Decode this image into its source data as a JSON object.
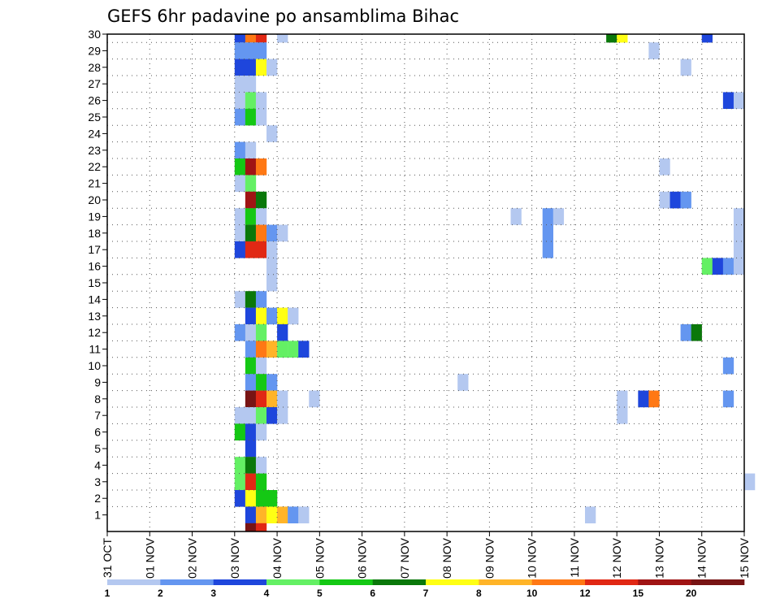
{
  "chart_data": {
    "type": "heatmap",
    "title": "GEFS 6hr padavine po ansamblima Bihac",
    "xlabel": "",
    "ylabel": "",
    "x_tick_labels": [
      "31 OCT",
      "01 NOV",
      "02 NOV",
      "03 NOV",
      "04 NOV",
      "05 NOV",
      "06 NOV",
      "07 NOV",
      "08 NOV",
      "09 NOV",
      "10 NOV",
      "11 NOV",
      "12 NOV",
      "13 NOV",
      "14 NOV",
      "15 NOV"
    ],
    "y_tick_labels": [
      "1",
      "2",
      "3",
      "4",
      "5",
      "6",
      "7",
      "8",
      "9",
      "10",
      "11",
      "12",
      "13",
      "14",
      "15",
      "16",
      "17",
      "18",
      "19",
      "20",
      "21",
      "22",
      "23",
      "24",
      "25",
      "26",
      "27",
      "28",
      "29",
      "30"
    ],
    "xlim_days": [
      0,
      15
    ],
    "ylim_members": [
      0,
      30
    ],
    "grid": true,
    "legend_position": "bottom",
    "levels": [
      1,
      2,
      3,
      4,
      5,
      6,
      7,
      8,
      10,
      12,
      15,
      20
    ],
    "level_labels": [
      "1",
      "2",
      "3",
      "4",
      "5",
      "6",
      "7",
      "8",
      "10",
      "12",
      "15",
      "20"
    ],
    "colors": [
      "#b4c8f0",
      "#6496f0",
      "#1e46dc",
      "#64f064",
      "#14c814",
      "#0a780a",
      "#ffff14",
      "#ffb428",
      "#ff7814",
      "#e12814",
      "#a01414",
      "#781414"
    ],
    "cells_note": "each cell: [member, day_index_6h, color_class]",
    "cells": [
      [
        30,
        12,
        2
      ],
      [
        30,
        13,
        8
      ],
      [
        30,
        14,
        9
      ],
      [
        30,
        16,
        0
      ],
      [
        30,
        47,
        5
      ],
      [
        30,
        48,
        6
      ],
      [
        30,
        56,
        2
      ],
      [
        29,
        12,
        1
      ],
      [
        29,
        13,
        1
      ],
      [
        29,
        14,
        1
      ],
      [
        29,
        51,
        0
      ],
      [
        28,
        12,
        2
      ],
      [
        28,
        13,
        2
      ],
      [
        28,
        14,
        6
      ],
      [
        28,
        15,
        0
      ],
      [
        28,
        54,
        0
      ],
      [
        27,
        12,
        0
      ],
      [
        27,
        13,
        0
      ],
      [
        26,
        12,
        0
      ],
      [
        26,
        13,
        3
      ],
      [
        26,
        14,
        0
      ],
      [
        26,
        58,
        2
      ],
      [
        26,
        59,
        0
      ],
      [
        25,
        12,
        1
      ],
      [
        25,
        13,
        4
      ],
      [
        25,
        14,
        0
      ],
      [
        24,
        15,
        0
      ],
      [
        23,
        12,
        1
      ],
      [
        23,
        13,
        0
      ],
      [
        22,
        12,
        4
      ],
      [
        22,
        13,
        10
      ],
      [
        22,
        14,
        8
      ],
      [
        22,
        52,
        0
      ],
      [
        21,
        12,
        0
      ],
      [
        21,
        13,
        3
      ],
      [
        20,
        13,
        10
      ],
      [
        20,
        14,
        5
      ],
      [
        20,
        52,
        0
      ],
      [
        20,
        53,
        2
      ],
      [
        20,
        54,
        1
      ],
      [
        19,
        12,
        0
      ],
      [
        19,
        13,
        4
      ],
      [
        19,
        14,
        0
      ],
      [
        19,
        38,
        0
      ],
      [
        19,
        41,
        1
      ],
      [
        19,
        42,
        0
      ],
      [
        19,
        59,
        0
      ],
      [
        18,
        12,
        0
      ],
      [
        18,
        13,
        5
      ],
      [
        18,
        14,
        8
      ],
      [
        18,
        15,
        1
      ],
      [
        18,
        16,
        0
      ],
      [
        18,
        41,
        1
      ],
      [
        18,
        59,
        0
      ],
      [
        17,
        12,
        2
      ],
      [
        17,
        13,
        9
      ],
      [
        17,
        14,
        9
      ],
      [
        17,
        15,
        0
      ],
      [
        17,
        41,
        1
      ],
      [
        17,
        59,
        0
      ],
      [
        16,
        15,
        0
      ],
      [
        16,
        56,
        3
      ],
      [
        16,
        57,
        2
      ],
      [
        16,
        58,
        1
      ],
      [
        16,
        59,
        0
      ],
      [
        15,
        15,
        0
      ],
      [
        14,
        12,
        0
      ],
      [
        14,
        13,
        5
      ],
      [
        14,
        14,
        1
      ],
      [
        13,
        13,
        2
      ],
      [
        13,
        14,
        6
      ],
      [
        13,
        15,
        1
      ],
      [
        13,
        16,
        6
      ],
      [
        13,
        17,
        0
      ],
      [
        12,
        12,
        1
      ],
      [
        12,
        13,
        0
      ],
      [
        12,
        14,
        3
      ],
      [
        12,
        16,
        2
      ],
      [
        12,
        54,
        1
      ],
      [
        12,
        55,
        5
      ],
      [
        11,
        13,
        1
      ],
      [
        11,
        14,
        8
      ],
      [
        11,
        15,
        7
      ],
      [
        11,
        16,
        3
      ],
      [
        11,
        17,
        3
      ],
      [
        11,
        18,
        2
      ],
      [
        10,
        13,
        4
      ],
      [
        10,
        14,
        0
      ],
      [
        10,
        58,
        1
      ],
      [
        9,
        13,
        1
      ],
      [
        9,
        14,
        4
      ],
      [
        9,
        15,
        1
      ],
      [
        9,
        33,
        0
      ],
      [
        8,
        13,
        11
      ],
      [
        8,
        14,
        9
      ],
      [
        8,
        15,
        7
      ],
      [
        8,
        16,
        0
      ],
      [
        8,
        19,
        0
      ],
      [
        8,
        48,
        0
      ],
      [
        8,
        50,
        2
      ],
      [
        8,
        51,
        8
      ],
      [
        8,
        58,
        1
      ],
      [
        7,
        12,
        0
      ],
      [
        7,
        13,
        0
      ],
      [
        7,
        14,
        3
      ],
      [
        7,
        15,
        2
      ],
      [
        7,
        16,
        0
      ],
      [
        7,
        48,
        0
      ],
      [
        6,
        12,
        4
      ],
      [
        6,
        13,
        2
      ],
      [
        6,
        14,
        0
      ],
      [
        5,
        13,
        2
      ],
      [
        4,
        12,
        3
      ],
      [
        4,
        13,
        5
      ],
      [
        4,
        14,
        0
      ],
      [
        3,
        12,
        3
      ],
      [
        3,
        13,
        9
      ],
      [
        3,
        14,
        4
      ],
      [
        3,
        60,
        0
      ],
      [
        2,
        12,
        2
      ],
      [
        2,
        13,
        6
      ],
      [
        2,
        14,
        4
      ],
      [
        2,
        15,
        4
      ],
      [
        1,
        13,
        2
      ],
      [
        1,
        14,
        7
      ],
      [
        1,
        15,
        6
      ],
      [
        1,
        16,
        7
      ],
      [
        1,
        17,
        1
      ],
      [
        1,
        18,
        0
      ],
      [
        1,
        45,
        0
      ],
      [
        0,
        13,
        11
      ],
      [
        0,
        14,
        9
      ]
    ]
  }
}
